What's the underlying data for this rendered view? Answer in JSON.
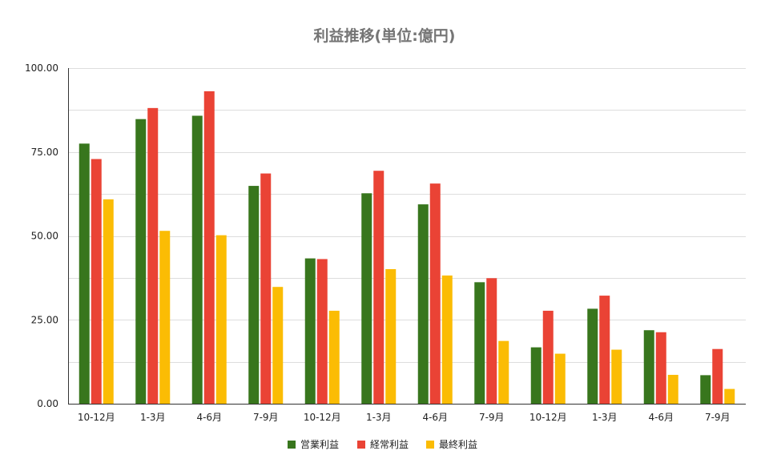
{
  "chart_data": {
    "type": "bar",
    "title": "利益推移(単位:億円)",
    "xlabel": "",
    "ylabel": "",
    "ylim": [
      0,
      100
    ],
    "yticks": [
      "0.00",
      "25.00",
      "50.00",
      "75.00",
      "100.00"
    ],
    "grid": true,
    "legend_position": "bottom",
    "categories": [
      "10-12月",
      "1-3月",
      "4-6月",
      "7-9月",
      "10-12月",
      "1-3月",
      "4-6月",
      "7-9月",
      "10-12月",
      "1-3月",
      "4-6月",
      "7-9月"
    ],
    "series": [
      {
        "name": "営業利益",
        "color": "#38761d",
        "values": [
          77.5,
          84.8,
          85.8,
          64.9,
          43.3,
          62.7,
          59.4,
          36.2,
          16.8,
          28.3,
          21.9,
          8.5
        ]
      },
      {
        "name": "経常利益",
        "color": "#ea4335",
        "values": [
          72.9,
          88.1,
          93.1,
          68.6,
          43.1,
          69.4,
          65.6,
          37.4,
          27.7,
          32.2,
          21.3,
          16.3
        ]
      },
      {
        "name": "最終利益",
        "color": "#fbbc04",
        "values": [
          60.9,
          51.5,
          50.2,
          34.8,
          27.7,
          40.1,
          38.2,
          18.7,
          14.9,
          16.1,
          8.6,
          4.4
        ]
      }
    ]
  }
}
